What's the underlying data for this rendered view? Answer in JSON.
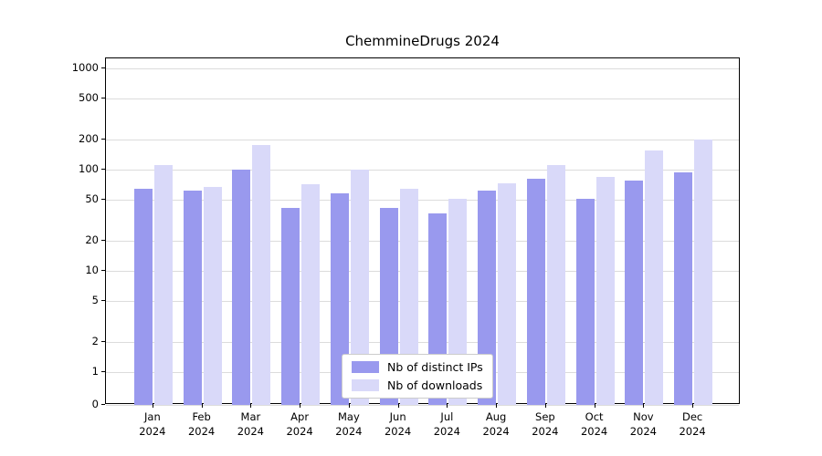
{
  "chart_data": {
    "type": "bar",
    "title": "ChemmineDrugs 2024",
    "yscale": "symlog",
    "ylim": [
      0,
      1000
    ],
    "yticks": [
      0,
      1,
      2,
      5,
      10,
      20,
      50,
      100,
      200,
      500,
      1000
    ],
    "grid": "horizontal",
    "legend_position": "lower center",
    "x_categories": [
      "Jan",
      "Feb",
      "Mar",
      "Apr",
      "May",
      "Jun",
      "Jul",
      "Aug",
      "Sep",
      "Oct",
      "Nov",
      "Dec"
    ],
    "x_sublabel": "2024",
    "series": [
      {
        "name": "Nb of distinct IPs",
        "color": "#9999ee",
        "values": [
          65,
          62,
          100,
          42,
          58,
          42,
          37,
          62,
          82,
          51,
          78,
          93
        ]
      },
      {
        "name": "Nb of downloads",
        "color": "#d9d9f9",
        "values": [
          110,
          68,
          175,
          72,
          100,
          65,
          52,
          73,
          112,
          85,
          155,
          200
        ]
      }
    ],
    "colors": {
      "grid": "#dcdcdc",
      "spine": "#000000",
      "legend_border": "#cccccc",
      "background": "#ffffff"
    }
  }
}
